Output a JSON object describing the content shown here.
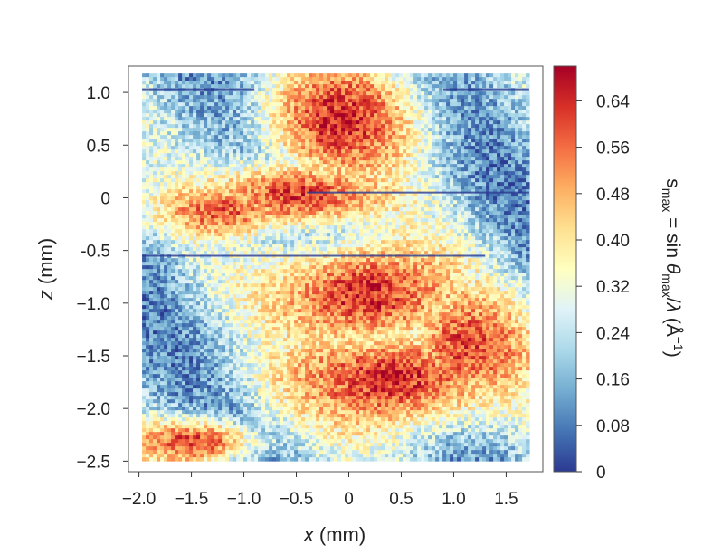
{
  "chart_data": {
    "type": "heatmap",
    "title": "",
    "x_axis": {
      "label_var": "x",
      "label_unit": " (mm)",
      "range": [
        -2.1,
        1.85
      ],
      "ticks": [
        -2.0,
        -1.5,
        -1.0,
        -0.5,
        0,
        0.5,
        1.0,
        1.5
      ],
      "tick_labels": [
        "−2.0",
        "−1.5",
        "−1.0",
        "−0.5",
        "0",
        "0.5",
        "1.0",
        "1.5"
      ]
    },
    "y_axis": {
      "label_var": "z",
      "label_unit": " (mm)",
      "range": [
        -2.6,
        1.25
      ],
      "ticks": [
        1.0,
        0.5,
        0,
        -0.5,
        -1.0,
        -1.5,
        -2.0,
        -2.5
      ],
      "tick_labels": [
        "1.0",
        "0.5",
        "0",
        "-0.5",
        "−1.0",
        "−1.5",
        "−2.0",
        "−2.5"
      ]
    },
    "data_extent": {
      "x": [
        -1.97,
        1.72
      ],
      "z": [
        -2.5,
        1.18
      ]
    },
    "colorbar": {
      "range": [
        0,
        0.7
      ],
      "ticks": [
        0,
        0.08,
        0.16,
        0.24,
        0.32,
        0.4,
        0.48,
        0.56,
        0.64
      ],
      "tick_labels": [
        "0",
        "0.08",
        "0.16",
        "0.24",
        "0.32",
        "0.40",
        "0.48",
        "0.56",
        "0.64"
      ],
      "label_parts": {
        "s": "s",
        "max_sub": "max",
        "eq": " = sin ",
        "theta": "θ",
        "max_sub2": "max",
        "slash": "/",
        "lambda": "λ",
        "unit": " (Å",
        "sup": "−1",
        "close": ")"
      },
      "colors": [
        "#2b3a92",
        "#4575b4",
        "#74add1",
        "#abd9e9",
        "#e0f3f8",
        "#ffffbf",
        "#fee090",
        "#fdae61",
        "#f46d43",
        "#d73027",
        "#a50026"
      ]
    },
    "grid": false,
    "legend": "none"
  }
}
